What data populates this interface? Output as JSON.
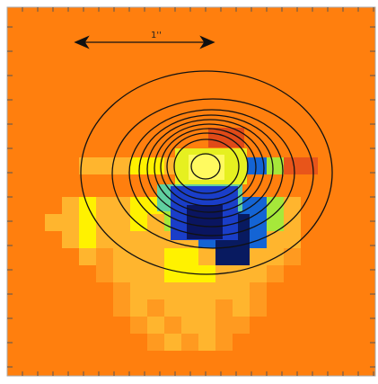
{
  "scale_bar": {
    "label": "1''"
  }
}
